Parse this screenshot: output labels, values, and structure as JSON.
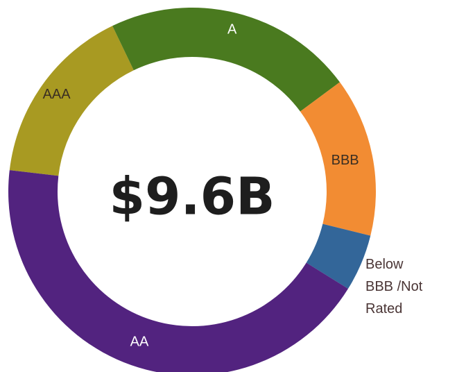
{
  "chart_data": {
    "type": "donut",
    "center_label": "$9.6B",
    "categories": [
      "AAA",
      "A",
      "BBB",
      "Below BBB /Not Rated",
      "AA"
    ],
    "values": [
      16,
      22,
      14,
      5,
      43
    ],
    "colors": [
      "#a89a22",
      "#4a7a1f",
      "#f28c33",
      "#336699",
      "#52237f"
    ]
  }
}
